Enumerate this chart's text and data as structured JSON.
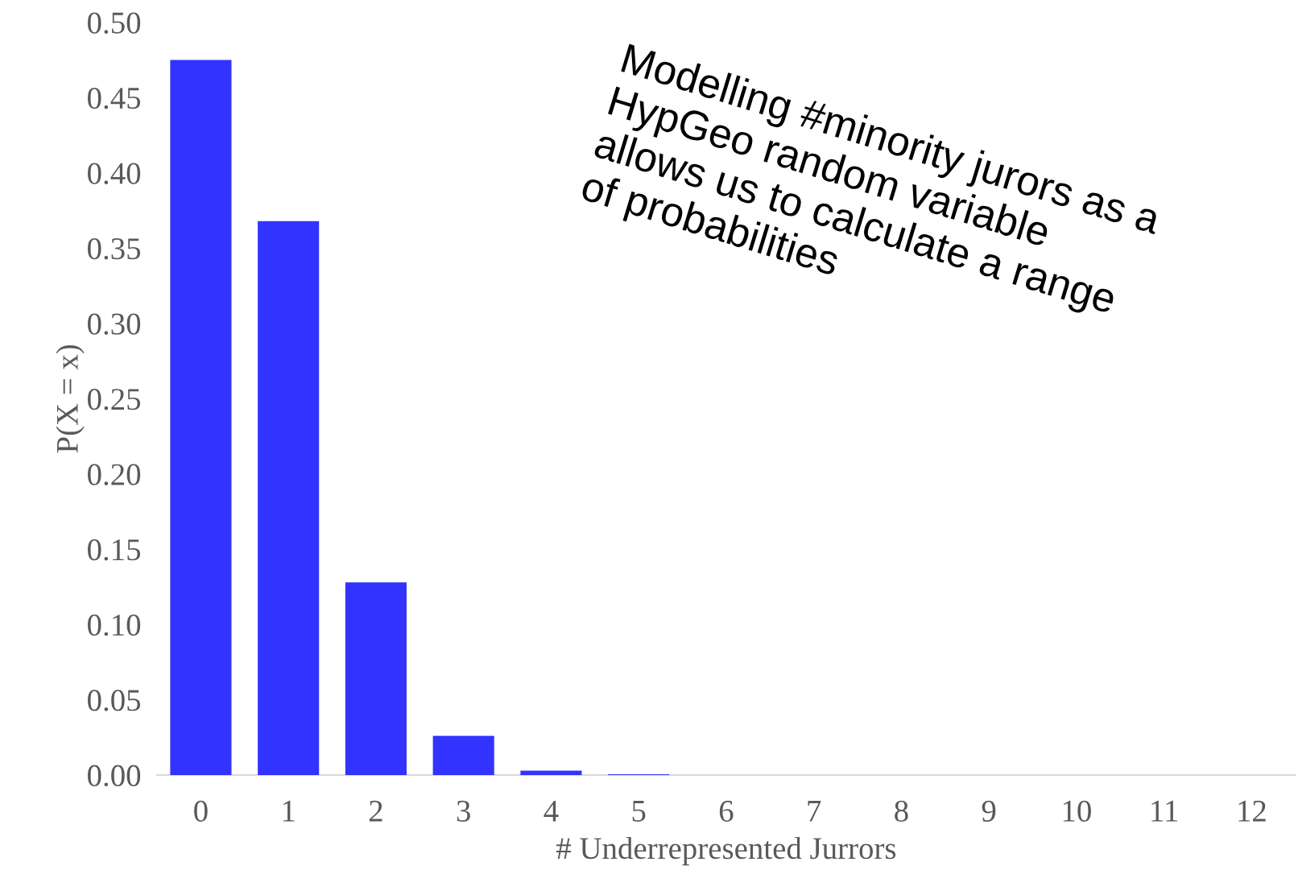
{
  "chart_data": {
    "type": "bar",
    "xlabel": "# Underrepresented Jurrors",
    "ylabel": "P(X = x)",
    "categories": [
      "0",
      "1",
      "2",
      "3",
      "4",
      "5",
      "6",
      "7",
      "8",
      "9",
      "10",
      "11",
      "12"
    ],
    "values": [
      0.475,
      0.368,
      0.128,
      0.026,
      0.003,
      0.0005,
      0,
      0,
      0,
      0,
      0,
      0,
      0
    ],
    "color": "#3333ff",
    "ylim": [
      0,
      0.5
    ],
    "yticks": [
      {
        "value": 0,
        "label": "0.00"
      },
      {
        "value": 0.05,
        "label": "0.05"
      },
      {
        "value": 0.1,
        "label": "0.10"
      },
      {
        "value": 0.15,
        "label": "0.15"
      },
      {
        "value": 0.2,
        "label": "0.20"
      },
      {
        "value": 0.25,
        "label": "0.25"
      },
      {
        "value": 0.3,
        "label": "0.30"
      },
      {
        "value": 0.35,
        "label": "0.35"
      },
      {
        "value": 0.4,
        "label": "0.40"
      },
      {
        "value": 0.45,
        "label": "0.45"
      },
      {
        "value": 0.5,
        "label": "0.50"
      }
    ],
    "grid": false,
    "annotations": [
      "Modelling #minority jurors as a\nHypGeo random variable\nallows us to calculate a range\nof probabilities"
    ]
  }
}
